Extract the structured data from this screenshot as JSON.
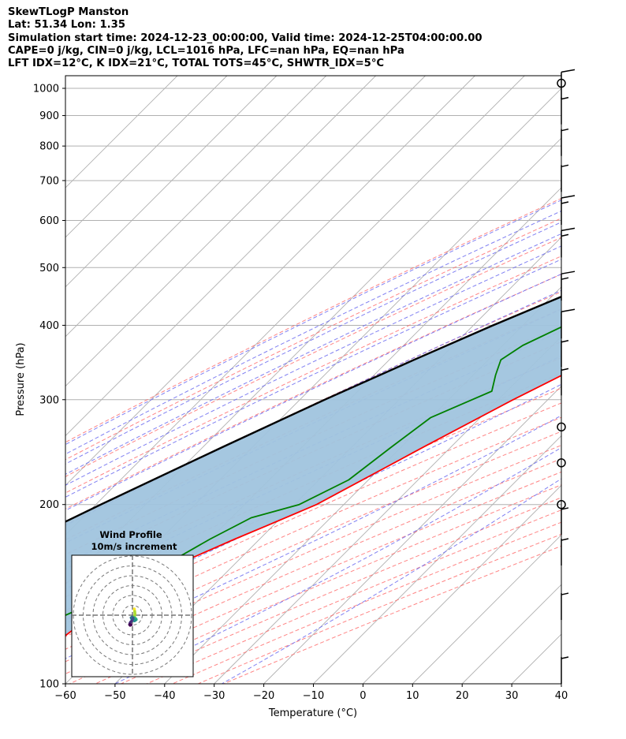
{
  "header": {
    "line1": "SkewTLogP Manston",
    "line2": "Lat: 51.34   Lon: 1.35",
    "line3": "Simulation start time: 2024-12-23_00:00:00, Valid time: 2024-12-25T04:00:00.00",
    "line4": "CAPE=0 j/kg, CIN=0 j/kg, LCL=1016 hPa, LFC=nan hPa, EQ=nan hPa",
    "line5": "LFT IDX=12°C, K IDX=21°C, TOTAL TOTS=45°C, SHWTR_IDX=5°C"
  },
  "colors": {
    "temperature": "#ff0000",
    "dewpoint": "#008000",
    "parcel": "#000000",
    "shade": "#a0c4de",
    "dry_adiabat": "#ff6666",
    "moist_adiabat": "#6a6af0",
    "mixing_ratio": "#9b59d0",
    "isotherm": "#b0b0b0"
  },
  "chart_data": {
    "type": "line",
    "skew": true,
    "y_scale": "log",
    "xlabel": "Temperature (°C)",
    "ylabel": "Pressure (hPa)",
    "xlim": [
      -60,
      40
    ],
    "ylim": [
      1050,
      100
    ],
    "x_ticks": [
      "−60",
      "−50",
      "−40",
      "−30",
      "−20",
      "−10",
      "0",
      "10",
      "20",
      "30",
      "40"
    ],
    "y_ticks": [
      "100",
      "200",
      "300",
      "400",
      "500",
      "600",
      "700",
      "800",
      "900",
      "1000"
    ],
    "grid": true,
    "series": [
      {
        "role": "temperature",
        "points": [
          [
            1016,
            10.5
          ],
          [
            1000,
            10.0
          ],
          [
            975,
            11.0
          ],
          [
            950,
            13.0
          ],
          [
            925,
            14.0
          ],
          [
            900,
            14.5
          ],
          [
            850,
            14.2
          ],
          [
            800,
            12.5
          ],
          [
            750,
            10.0
          ],
          [
            700,
            7.0
          ],
          [
            650,
            4.0
          ],
          [
            600,
            1.0
          ],
          [
            550,
            -2.0
          ],
          [
            500,
            -4.0
          ],
          [
            450,
            -7.5
          ],
          [
            400,
            -12.0
          ],
          [
            350,
            -19.0
          ],
          [
            300,
            -27.0
          ],
          [
            250,
            -35.5
          ],
          [
            200,
            -45.5
          ],
          [
            185,
            -51.0
          ],
          [
            175,
            -55.0
          ],
          [
            160,
            -61.0
          ],
          [
            145,
            -66.0
          ],
          [
            130,
            -68.5
          ],
          [
            115,
            -70.5
          ],
          [
            100,
            -74.0
          ]
        ]
      },
      {
        "role": "dewpoint",
        "points": [
          [
            1016,
            9.5
          ],
          [
            1000,
            9.0
          ],
          [
            975,
            9.5
          ],
          [
            950,
            9.0
          ],
          [
            925,
            8.5
          ],
          [
            900,
            8.0
          ],
          [
            850,
            6.5
          ],
          [
            800,
            4.0
          ],
          [
            750,
            1.5
          ],
          [
            700,
            -1.5
          ],
          [
            650,
            -4.0
          ],
          [
            600,
            -7.5
          ],
          [
            550,
            -13.0
          ],
          [
            500,
            -19.0
          ],
          [
            450,
            -25.0
          ],
          [
            400,
            -31.5
          ],
          [
            370,
            -36.0
          ],
          [
            350,
            -37.5
          ],
          [
            330,
            -35.5
          ],
          [
            310,
            -33.0
          ],
          [
            280,
            -40.0
          ],
          [
            250,
            -42.0
          ],
          [
            220,
            -44.0
          ],
          [
            200,
            -49.0
          ],
          [
            190,
            -56.0
          ],
          [
            175,
            -60.0
          ],
          [
            160,
            -63.5
          ],
          [
            145,
            -67.0
          ],
          [
            130,
            -74.0
          ],
          [
            115,
            -80.0
          ],
          [
            105,
            -82.0
          ],
          [
            100,
            -81.5
          ]
        ]
      },
      {
        "role": "parcel",
        "points": [
          [
            1016,
            10.0
          ],
          [
            1000,
            9.0
          ],
          [
            950,
            6.5
          ],
          [
            900,
            4.0
          ],
          [
            850,
            1.3
          ],
          [
            800,
            -1.8
          ],
          [
            750,
            -5.0
          ],
          [
            700,
            -8.7
          ],
          [
            650,
            -13.0
          ],
          [
            600,
            -17.8
          ],
          [
            550,
            -23.5
          ],
          [
            500,
            -30.0
          ],
          [
            450,
            -37.5
          ],
          [
            400,
            -46.0
          ],
          [
            350,
            -55.0
          ],
          [
            300,
            -65.0
          ],
          [
            250,
            -76.0
          ],
          [
            200,
            -89.0
          ],
          [
            150,
            -105.0
          ],
          [
            100,
            -126.0
          ]
        ]
      }
    ],
    "wind_barbs": [
      {
        "p": 100,
        "speed_kt": 5
      },
      {
        "p": 128,
        "speed_kt": 5
      },
      {
        "p": 158,
        "speed_kt": 5
      },
      {
        "p": 178,
        "speed_kt": 5
      },
      {
        "p": 200,
        "speed_kt": 0
      },
      {
        "p": 235,
        "speed_kt": 0
      },
      {
        "p": 270,
        "speed_kt": 0
      },
      {
        "p": 305,
        "speed_kt": 5
      },
      {
        "p": 340,
        "speed_kt": 5
      },
      {
        "p": 380,
        "speed_kt": 10
      },
      {
        "p": 440,
        "speed_kt": 15
      },
      {
        "p": 520,
        "speed_kt": 15
      },
      {
        "p": 590,
        "speed_kt": 15
      },
      {
        "p": 670,
        "speed_kt": 5
      },
      {
        "p": 770,
        "speed_kt": 5
      },
      {
        "p": 870,
        "speed_kt": 5
      },
      {
        "p": 960,
        "speed_kt": 10
      },
      {
        "p": 1020,
        "speed_kt": 0
      }
    ],
    "hodograph": {
      "title": "Wind Profile",
      "subtitle": "10m/s increment",
      "ring_increment_ms": 10,
      "points": [
        [
          1.5,
          5
        ],
        [
          1.8,
          3
        ],
        [
          2,
          1
        ],
        [
          1.6,
          -1
        ],
        [
          1.2,
          -1.5
        ],
        [
          1.5,
          -2
        ],
        [
          2.2,
          -2.5
        ],
        [
          2.8,
          -3
        ],
        [
          3,
          -3.5
        ],
        [
          2.4,
          -4
        ],
        [
          1.5,
          -4.5
        ],
        [
          0.5,
          -4
        ],
        [
          -0.5,
          -3
        ],
        [
          -1,
          -2
        ],
        [
          -0.3,
          -1.5
        ],
        [
          0.5,
          -2.2
        ],
        [
          0.2,
          -3.5
        ],
        [
          -0.8,
          -4.8
        ],
        [
          -1.5,
          -5.5
        ],
        [
          -2,
          -6.5
        ],
        [
          -2.2,
          -7.5
        ],
        [
          -1.8,
          -8
        ],
        [
          -1,
          -7.6
        ]
      ]
    }
  }
}
